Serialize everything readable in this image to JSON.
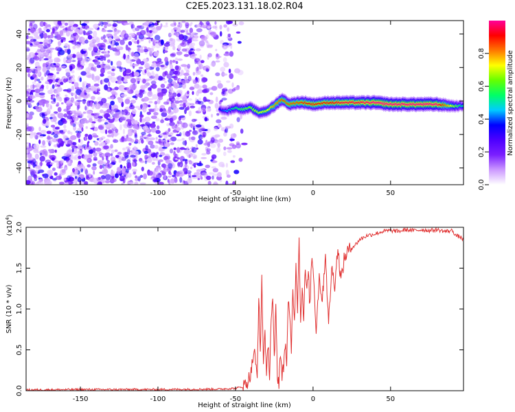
{
  "title": "C2E5.2023.131.18.02.R04",
  "chart_data": [
    {
      "type": "heatmap",
      "xlabel": "Height of straight line (km)",
      "ylabel": "Frequency (Hz)",
      "xlim": [
        -185,
        97
      ],
      "ylim": [
        -50,
        48
      ],
      "xticks": [
        "-150",
        "-100",
        "-50",
        "0",
        "50"
      ],
      "xtick_values": [
        -150,
        -100,
        -50,
        0,
        50
      ],
      "yticks": [
        "-40",
        "-20",
        "0",
        "20",
        "40"
      ],
      "ytick_values": [
        -40,
        -20,
        0,
        20,
        40
      ],
      "colorbar": {
        "label": "Normalized spectral amplitude",
        "ticks": [
          "0.0",
          "0.2",
          "0.4",
          "0.6",
          "0.8"
        ],
        "tick_values": [
          0.0,
          0.2,
          0.4,
          0.6,
          0.8
        ],
        "range": [
          0,
          1
        ],
        "colors": [
          "#ffffff",
          "#cc99ff",
          "#7a1fff",
          "#4d00ff",
          "#0000ff",
          "#00ccff",
          "#00ff66",
          "#66ff00",
          "#ffff00",
          "#ff7700",
          "#ff0000",
          "#ff0099"
        ]
      },
      "noise_region_x": [
        -185,
        -55
      ],
      "signal_trace": {
        "x": [
          -60,
          -55,
          -50,
          -45,
          -40,
          -35,
          -30,
          -25,
          -20,
          -15,
          -10,
          -5,
          0,
          10,
          20,
          30,
          40,
          50,
          60,
          70,
          80,
          90,
          97
        ],
        "y": [
          -5,
          -6,
          -4,
          -5,
          -4,
          -7,
          -6,
          -3,
          1,
          -2,
          -1,
          -1,
          -2,
          -1,
          -1,
          -1,
          -1,
          -2,
          -2,
          -2,
          -2,
          -3,
          -3
        ],
        "peak_amplitude": [
          0.35,
          0.45,
          0.55,
          0.6,
          0.65,
          0.7,
          0.7,
          0.8,
          0.85,
          0.85,
          0.85,
          0.9,
          0.9,
          0.9,
          0.95,
          0.95,
          1.0,
          1.0,
          1.0,
          1.0,
          1.0,
          0.7,
          0.5
        ]
      }
    },
    {
      "type": "line",
      "xlabel": "Height of straight line (km)",
      "ylabel": "SNR (10 * v/v)",
      "y_multiplier": "(x10",
      "y_multiplier_exp": "4",
      "xlim": [
        -185,
        97
      ],
      "ylim": [
        0,
        2.0
      ],
      "xticks": [
        "-150",
        "-100",
        "-50",
        "0",
        "50"
      ],
      "xtick_values": [
        -150,
        -100,
        -50,
        0,
        50
      ],
      "yticks": [
        "0.0",
        "0.5",
        "1.0",
        "1.5",
        "2.0"
      ],
      "ytick_values": [
        0,
        0.5,
        1.0,
        1.5,
        2.0
      ],
      "series": [
        {
          "color": "#e03030",
          "x": [
            -185,
            -150,
            -100,
            -60,
            -50,
            -45,
            -42,
            -40,
            -38,
            -36,
            -35,
            -34,
            -33,
            -32,
            -31,
            -30,
            -29,
            -28,
            -27,
            -26,
            -25,
            -24,
            -23,
            -22,
            -21,
            -20,
            -19,
            -18,
            -17,
            -16,
            -15,
            -14,
            -13,
            -12,
            -11,
            -10,
            -9,
            -8,
            -7,
            -6,
            -5,
            -4,
            -3,
            -2,
            -1,
            0,
            2,
            4,
            6,
            8,
            10,
            12,
            14,
            16,
            18,
            20,
            22,
            25,
            28,
            30,
            35,
            40,
            45,
            50,
            55,
            60,
            65,
            70,
            75,
            80,
            85,
            90,
            92,
            95,
            97
          ],
          "values": [
            0.01,
            0.015,
            0.015,
            0.02,
            0.03,
            0.05,
            0.12,
            0.22,
            0.5,
            0.15,
            1.2,
            0.4,
            1.4,
            0.3,
            0.8,
            0.1,
            0.6,
            0.2,
            0.9,
            1.1,
            0.35,
            1.0,
            0.2,
            0.1,
            0.5,
            0.15,
            0.3,
            0.6,
            0.35,
            1.05,
            0.9,
            0.5,
            1.3,
            0.8,
            1.6,
            1.0,
            1.93,
            0.8,
            1.3,
            0.9,
            1.5,
            1.2,
            1.45,
            1.0,
            1.6,
            1.55,
            0.75,
            1.4,
            1.1,
            1.7,
            0.8,
            1.5,
            1.3,
            1.75,
            1.35,
            1.6,
            1.7,
            1.75,
            1.8,
            1.85,
            1.9,
            1.92,
            1.95,
            1.96,
            1.95,
            1.97,
            1.96,
            1.97,
            1.96,
            1.97,
            1.95,
            1.96,
            1.9,
            1.88,
            1.85
          ]
        }
      ]
    }
  ]
}
